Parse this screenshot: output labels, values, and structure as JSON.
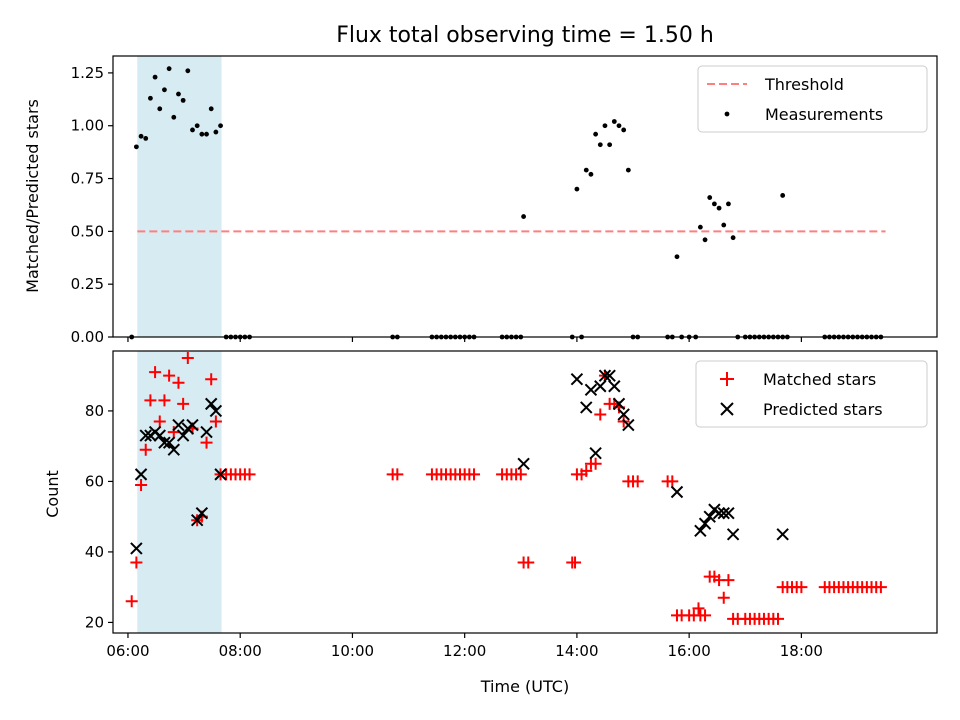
{
  "chart_data": [
    {
      "type": "scatter",
      "title": "Flux total observing time = 1.50 h",
      "xlabel": "",
      "ylabel": "Matched/Predicted stars",
      "xlim": [
        "05:44",
        "20:25"
      ],
      "ylim": [
        0,
        1.33
      ],
      "x_ticks": [
        "06:00",
        "08:00",
        "10:00",
        "12:00",
        "14:00",
        "16:00",
        "18:00"
      ],
      "y_ticks": [
        "0.00",
        "0.25",
        "0.50",
        "0.75",
        "1.00",
        "1.25"
      ],
      "x_tick_labels_shown": false,
      "grid": false,
      "legend_position": "top-right",
      "shaded_span": {
        "start": "06:10",
        "end": "07:40",
        "color": "#add8e6"
      },
      "threshold": {
        "name": "Threshold",
        "value": 0.5,
        "from": "06:10",
        "to": "19:30",
        "color": "#ff7f7f",
        "style": "dashed"
      },
      "series": [
        {
          "name": "Measurements",
          "color": "#000000",
          "marker": "dot",
          "points": [
            [
              "06:04",
              0
            ],
            [
              "06:09",
              0.9
            ],
            [
              "06:14",
              0.95
            ],
            [
              "06:19",
              0.94
            ],
            [
              "06:24",
              1.13
            ],
            [
              "06:29",
              1.23
            ],
            [
              "06:34",
              1.08
            ],
            [
              "06:39",
              1.17
            ],
            [
              "06:44",
              1.27
            ],
            [
              "06:49",
              1.04
            ],
            [
              "06:54",
              1.15
            ],
            [
              "06:59",
              1.12
            ],
            [
              "07:04",
              1.26
            ],
            [
              "07:09",
              0.98
            ],
            [
              "07:14",
              1.0
            ],
            [
              "07:19",
              0.96
            ],
            [
              "07:24",
              0.96
            ],
            [
              "07:29",
              1.08
            ],
            [
              "07:34",
              0.97
            ],
            [
              "07:39",
              1.0
            ],
            [
              "07:45",
              0
            ],
            [
              "07:50",
              0
            ],
            [
              "07:55",
              0
            ],
            [
              "08:00",
              0
            ],
            [
              "08:05",
              0
            ],
            [
              "08:10",
              0
            ],
            [
              "10:43",
              0
            ],
            [
              "10:48",
              0
            ],
            [
              "11:25",
              0
            ],
            [
              "11:30",
              0
            ],
            [
              "11:35",
              0
            ],
            [
              "11:40",
              0
            ],
            [
              "11:45",
              0
            ],
            [
              "11:50",
              0
            ],
            [
              "11:55",
              0
            ],
            [
              "12:00",
              0
            ],
            [
              "12:05",
              0
            ],
            [
              "12:10",
              0
            ],
            [
              "12:40",
              0
            ],
            [
              "12:45",
              0
            ],
            [
              "12:50",
              0
            ],
            [
              "12:55",
              0
            ],
            [
              "13:00",
              0
            ],
            [
              "13:03",
              0.57
            ],
            [
              "13:55",
              0
            ],
            [
              "14:00",
              0.7
            ],
            [
              "14:05",
              0
            ],
            [
              "14:10",
              0.79
            ],
            [
              "14:15",
              0.77
            ],
            [
              "14:20",
              0.96
            ],
            [
              "14:25",
              0.91
            ],
            [
              "14:30",
              1.0
            ],
            [
              "14:35",
              0.91
            ],
            [
              "14:40",
              1.02
            ],
            [
              "14:45",
              1.0
            ],
            [
              "14:50",
              0.98
            ],
            [
              "14:55",
              0.79
            ],
            [
              "15:00",
              0
            ],
            [
              "15:05",
              0
            ],
            [
              "15:37",
              0
            ],
            [
              "15:42",
              0
            ],
            [
              "15:47",
              0.38
            ],
            [
              "15:52",
              0
            ],
            [
              "16:00",
              0
            ],
            [
              "16:07",
              0
            ],
            [
              "16:12",
              0.52
            ],
            [
              "16:17",
              0.46
            ],
            [
              "16:22",
              0.66
            ],
            [
              "16:27",
              0.63
            ],
            [
              "16:32",
              0.61
            ],
            [
              "16:37",
              0.53
            ],
            [
              "16:42",
              0.63
            ],
            [
              "16:47",
              0.47
            ],
            [
              "16:52",
              0
            ],
            [
              "17:00",
              0
            ],
            [
              "17:05",
              0
            ],
            [
              "17:10",
              0
            ],
            [
              "17:15",
              0
            ],
            [
              "17:20",
              0
            ],
            [
              "17:25",
              0
            ],
            [
              "17:30",
              0
            ],
            [
              "17:35",
              0
            ],
            [
              "17:40",
              0
            ],
            [
              "17:45",
              0
            ],
            [
              "17:40",
              0.67
            ],
            [
              "18:25",
              0
            ],
            [
              "18:30",
              0
            ],
            [
              "18:35",
              0
            ],
            [
              "18:40",
              0
            ],
            [
              "18:45",
              0
            ],
            [
              "18:50",
              0
            ],
            [
              "18:55",
              0
            ],
            [
              "19:00",
              0
            ],
            [
              "19:05",
              0
            ],
            [
              "19:10",
              0
            ],
            [
              "19:15",
              0
            ],
            [
              "19:20",
              0
            ],
            [
              "19:25",
              0
            ]
          ]
        }
      ]
    },
    {
      "type": "scatter",
      "title": "",
      "xlabel": "Time (UTC)",
      "ylabel": "Count",
      "xlim": [
        "05:44",
        "20:25"
      ],
      "ylim": [
        17,
        97
      ],
      "x_ticks": [
        "06:00",
        "08:00",
        "10:00",
        "12:00",
        "14:00",
        "16:00",
        "18:00"
      ],
      "y_ticks": [
        "20",
        "40",
        "60",
        "80"
      ],
      "grid": false,
      "legend_position": "top-right",
      "shaded_span": {
        "start": "06:10",
        "end": "07:40",
        "color": "#add8e6"
      },
      "series": [
        {
          "name": "Matched stars",
          "color": "#ff0000",
          "marker": "plus",
          "points": [
            [
              "06:04",
              26
            ],
            [
              "06:09",
              37
            ],
            [
              "06:14",
              59
            ],
            [
              "06:19",
              69
            ],
            [
              "06:24",
              83
            ],
            [
              "06:29",
              91
            ],
            [
              "06:34",
              77
            ],
            [
              "06:39",
              83
            ],
            [
              "06:44",
              90
            ],
            [
              "06:49",
              74
            ],
            [
              "06:54",
              88
            ],
            [
              "06:59",
              82
            ],
            [
              "07:04",
              95
            ],
            [
              "07:09",
              75
            ],
            [
              "07:14",
              49
            ],
            [
              "07:19",
              50
            ],
            [
              "07:24",
              71
            ],
            [
              "07:29",
              89
            ],
            [
              "07:34",
              77
            ],
            [
              "07:39",
              62
            ],
            [
              "07:45",
              62
            ],
            [
              "07:50",
              62
            ],
            [
              "07:55",
              62
            ],
            [
              "08:00",
              62
            ],
            [
              "08:05",
              62
            ],
            [
              "08:10",
              62
            ],
            [
              "10:43",
              62
            ],
            [
              "10:48",
              62
            ],
            [
              "11:25",
              62
            ],
            [
              "11:30",
              62
            ],
            [
              "11:35",
              62
            ],
            [
              "11:40",
              62
            ],
            [
              "11:45",
              62
            ],
            [
              "11:50",
              62
            ],
            [
              "11:55",
              62
            ],
            [
              "12:00",
              62
            ],
            [
              "12:05",
              62
            ],
            [
              "12:10",
              62
            ],
            [
              "12:40",
              62
            ],
            [
              "12:45",
              62
            ],
            [
              "12:50",
              62
            ],
            [
              "12:55",
              62
            ],
            [
              "13:00",
              62
            ],
            [
              "13:03",
              37
            ],
            [
              "13:08",
              37
            ],
            [
              "13:55",
              37
            ],
            [
              "13:58",
              37
            ],
            [
              "14:00",
              62
            ],
            [
              "14:05",
              62
            ],
            [
              "14:10",
              63
            ],
            [
              "14:15",
              65
            ],
            [
              "14:20",
              65
            ],
            [
              "14:25",
              79
            ],
            [
              "14:30",
              90
            ],
            [
              "14:35",
              82
            ],
            [
              "14:40",
              82
            ],
            [
              "14:45",
              81
            ],
            [
              "14:50",
              77
            ],
            [
              "14:55",
              60
            ],
            [
              "15:00",
              60
            ],
            [
              "15:05",
              60
            ],
            [
              "15:37",
              60
            ],
            [
              "15:42",
              60
            ],
            [
              "15:47",
              22
            ],
            [
              "15:52",
              22
            ],
            [
              "16:00",
              22
            ],
            [
              "16:05",
              22
            ],
            [
              "16:10",
              24
            ],
            [
              "16:12",
              22
            ],
            [
              "16:17",
              22
            ],
            [
              "16:22",
              33
            ],
            [
              "16:27",
              33
            ],
            [
              "16:32",
              32
            ],
            [
              "16:37",
              27
            ],
            [
              "16:42",
              32
            ],
            [
              "16:47",
              21
            ],
            [
              "16:52",
              21
            ],
            [
              "17:00",
              21
            ],
            [
              "17:05",
              21
            ],
            [
              "17:10",
              21
            ],
            [
              "17:15",
              21
            ],
            [
              "17:20",
              21
            ],
            [
              "17:25",
              21
            ],
            [
              "17:30",
              21
            ],
            [
              "17:35",
              21
            ],
            [
              "17:40",
              30
            ],
            [
              "17:45",
              30
            ],
            [
              "17:50",
              30
            ],
            [
              "17:55",
              30
            ],
            [
              "18:00",
              30
            ],
            [
              "18:25",
              30
            ],
            [
              "18:30",
              30
            ],
            [
              "18:35",
              30
            ],
            [
              "18:40",
              30
            ],
            [
              "18:45",
              30
            ],
            [
              "18:50",
              30
            ],
            [
              "18:55",
              30
            ],
            [
              "19:00",
              30
            ],
            [
              "19:05",
              30
            ],
            [
              "19:10",
              30
            ],
            [
              "19:15",
              30
            ],
            [
              "19:20",
              30
            ],
            [
              "19:25",
              30
            ]
          ]
        },
        {
          "name": "Predicted stars",
          "color": "#000000",
          "marker": "x",
          "points": [
            [
              "06:09",
              41
            ],
            [
              "06:14",
              62
            ],
            [
              "06:19",
              73
            ],
            [
              "06:24",
              73
            ],
            [
              "06:29",
              74
            ],
            [
              "06:34",
              73
            ],
            [
              "06:39",
              71
            ],
            [
              "06:44",
              71
            ],
            [
              "06:49",
              69
            ],
            [
              "06:54",
              76
            ],
            [
              "06:59",
              73
            ],
            [
              "07:04",
              75
            ],
            [
              "07:09",
              76
            ],
            [
              "07:14",
              49
            ],
            [
              "07:19",
              51
            ],
            [
              "07:24",
              74
            ],
            [
              "07:29",
              82
            ],
            [
              "07:34",
              80
            ],
            [
              "07:39",
              62
            ],
            [
              "13:03",
              65
            ],
            [
              "14:00",
              89
            ],
            [
              "14:10",
              81
            ],
            [
              "14:15",
              86
            ],
            [
              "14:20",
              68
            ],
            [
              "14:25",
              87
            ],
            [
              "14:30",
              90
            ],
            [
              "14:35",
              90
            ],
            [
              "14:40",
              87
            ],
            [
              "14:45",
              82
            ],
            [
              "14:50",
              79
            ],
            [
              "14:55",
              76
            ],
            [
              "15:47",
              57
            ],
            [
              "16:12",
              46
            ],
            [
              "16:17",
              48
            ],
            [
              "16:22",
              50
            ],
            [
              "16:27",
              52
            ],
            [
              "16:32",
              51
            ],
            [
              "16:37",
              51
            ],
            [
              "16:42",
              51
            ],
            [
              "16:47",
              45
            ],
            [
              "17:40",
              45
            ]
          ]
        }
      ]
    }
  ]
}
